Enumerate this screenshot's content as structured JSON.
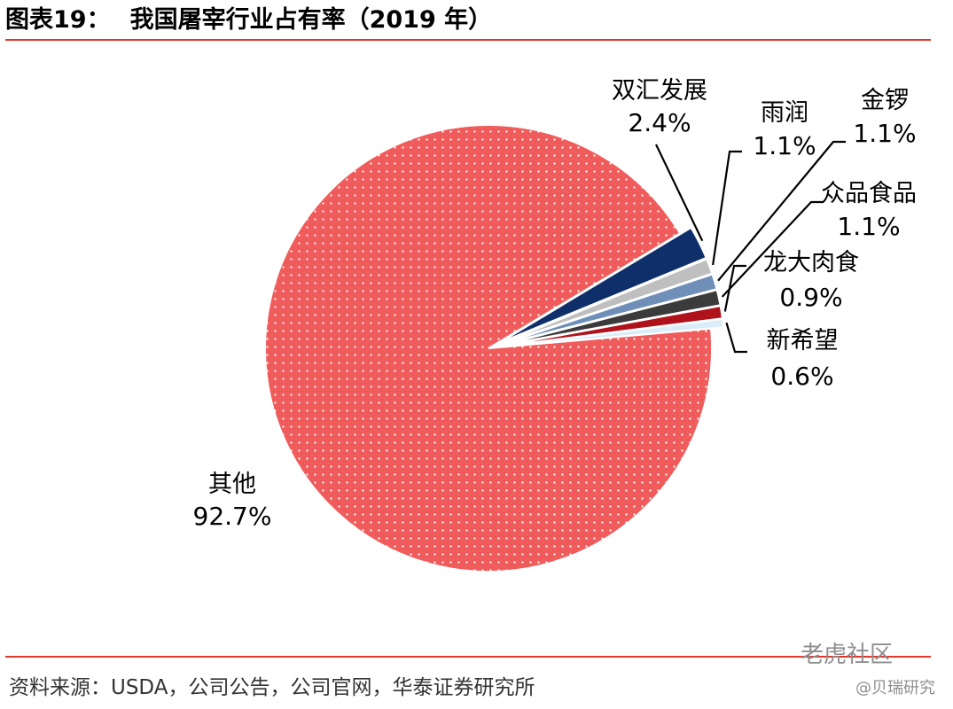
{
  "title": {
    "figure_label": "图表19：",
    "text": "我国屠宰行业占有率（2019 年）"
  },
  "source": "资料来源：USDA，公司公告，公司官网，华泰证券研究所",
  "watermark": {
    "community": "老虎社区",
    "author": "@贝瑞研究"
  },
  "chart_data": {
    "type": "pie",
    "title": "我国屠宰行业占有率（2019 年）",
    "unit": "%",
    "slices": [
      {
        "name": "双汇发展",
        "value": 2.4,
        "label": "2.4%",
        "color": "#0f2f6b",
        "pattern": "solid"
      },
      {
        "name": "雨润",
        "value": 1.1,
        "label": "1.1%",
        "color": "#bfbfbf",
        "pattern": "solid"
      },
      {
        "name": "金锣",
        "value": 1.1,
        "label": "1.1%",
        "color": "#6f8fb8",
        "pattern": "solid"
      },
      {
        "name": "众品食品",
        "value": 1.1,
        "label": "1.1%",
        "color": "#3b3b3b",
        "pattern": "solid"
      },
      {
        "name": "龙大肉食",
        "value": 0.9,
        "label": "0.9%",
        "color": "#b0121b",
        "pattern": "solid"
      },
      {
        "name": "新希望",
        "value": 0.6,
        "label": "0.6%",
        "color": "#d9eefa",
        "pattern": "solid"
      },
      {
        "name": "其他",
        "value": 92.7,
        "label": "92.7%",
        "color": "#f05c5c",
        "pattern": "dotted"
      }
    ]
  }
}
